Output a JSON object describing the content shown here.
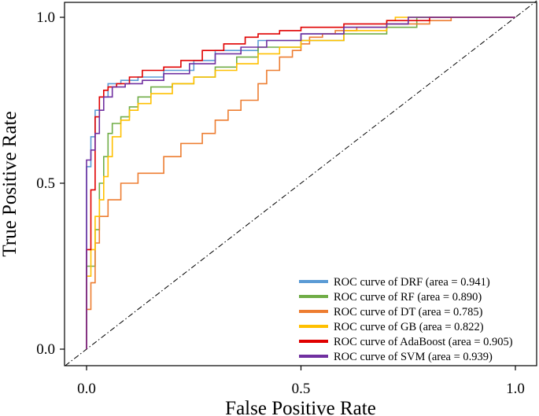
{
  "chart_data": {
    "type": "line",
    "title": "",
    "xlabel": "False Positive Rate",
    "ylabel": "True Positive Rate",
    "xlim": [
      -0.05,
      1.05
    ],
    "ylim": [
      -0.05,
      1.0
    ],
    "xticks": [
      0.0,
      0.5,
      1.0
    ],
    "xtick_labels": [
      "0.0",
      "0.5",
      "1.0"
    ],
    "yticks": [
      0.0,
      0.5,
      1.0
    ],
    "ytick_labels": [
      "0.0",
      "0.5",
      "1.0"
    ],
    "grid": false,
    "legend_position": "bottom-right",
    "reference_line": {
      "name": "chance",
      "x": [
        -0.05,
        1.05
      ],
      "y": [
        -0.05,
        1.05
      ],
      "style": "dash-dot",
      "color": "#000000"
    },
    "series": [
      {
        "name": "DRF",
        "label": "ROC curve of DRF (area = 0.941)",
        "color": "#5b9bd5",
        "x": [
          0.0,
          0.0,
          0.01,
          0.01,
          0.02,
          0.02,
          0.03,
          0.03,
          0.05,
          0.05,
          0.08,
          0.12,
          0.18,
          0.25,
          0.3,
          0.4,
          0.5,
          0.6,
          0.7,
          0.75,
          1.0
        ],
        "y": [
          0.0,
          0.55,
          0.6,
          0.64,
          0.66,
          0.72,
          0.74,
          0.76,
          0.79,
          0.8,
          0.81,
          0.82,
          0.84,
          0.87,
          0.9,
          0.93,
          0.95,
          0.97,
          0.98,
          1.0,
          1.0
        ]
      },
      {
        "name": "RF",
        "label": "ROC curve of RF (area = 0.890)",
        "color": "#70ad47",
        "x": [
          0.0,
          0.0,
          0.02,
          0.03,
          0.04,
          0.05,
          0.06,
          0.08,
          0.1,
          0.12,
          0.15,
          0.2,
          0.25,
          0.3,
          0.35,
          0.4,
          0.5,
          0.6,
          0.7,
          0.77,
          1.0
        ],
        "y": [
          0.0,
          0.25,
          0.36,
          0.5,
          0.58,
          0.65,
          0.68,
          0.7,
          0.73,
          0.76,
          0.79,
          0.8,
          0.82,
          0.85,
          0.88,
          0.91,
          0.93,
          0.95,
          0.97,
          1.0,
          1.0
        ]
      },
      {
        "name": "DT",
        "label": "ROC curve of DT (area = 0.785)",
        "color": "#ed7d31",
        "x": [
          0.0,
          0.0,
          0.01,
          0.02,
          0.03,
          0.05,
          0.08,
          0.12,
          0.18,
          0.22,
          0.27,
          0.3,
          0.33,
          0.36,
          0.4,
          0.42,
          0.45,
          0.48,
          0.5,
          0.52,
          0.55,
          0.58,
          0.63,
          0.7,
          0.8,
          0.85,
          1.0
        ],
        "y": [
          0.0,
          0.12,
          0.2,
          0.32,
          0.4,
          0.45,
          0.5,
          0.53,
          0.58,
          0.62,
          0.65,
          0.69,
          0.72,
          0.75,
          0.8,
          0.84,
          0.88,
          0.9,
          0.92,
          0.94,
          0.95,
          0.96,
          0.97,
          0.98,
          0.99,
          1.0,
          1.0
        ]
      },
      {
        "name": "GB",
        "label": "ROC curve of GB (area = 0.822)",
        "color": "#ffc000",
        "x": [
          0.0,
          0.0,
          0.01,
          0.02,
          0.03,
          0.04,
          0.05,
          0.06,
          0.08,
          0.1,
          0.12,
          0.15,
          0.2,
          0.25,
          0.3,
          0.35,
          0.4,
          0.45,
          0.5,
          0.6,
          0.7,
          0.72,
          1.0
        ],
        "y": [
          0.0,
          0.22,
          0.3,
          0.4,
          0.45,
          0.52,
          0.58,
          0.64,
          0.69,
          0.72,
          0.74,
          0.77,
          0.8,
          0.82,
          0.84,
          0.86,
          0.89,
          0.91,
          0.93,
          0.96,
          0.99,
          1.0,
          1.0
        ]
      },
      {
        "name": "AdaBoost",
        "label": "ROC curve of AdaBoost (area = 0.905)",
        "color": "#e00000",
        "x": [
          0.0,
          0.0,
          0.01,
          0.02,
          0.02,
          0.03,
          0.04,
          0.05,
          0.07,
          0.1,
          0.13,
          0.18,
          0.22,
          0.27,
          0.32,
          0.37,
          0.4,
          0.45,
          0.5,
          0.6,
          0.7,
          0.8,
          1.0
        ],
        "y": [
          0.0,
          0.3,
          0.48,
          0.58,
          0.7,
          0.76,
          0.78,
          0.79,
          0.8,
          0.82,
          0.84,
          0.85,
          0.87,
          0.9,
          0.92,
          0.94,
          0.95,
          0.96,
          0.97,
          0.98,
          0.99,
          1.0,
          1.0
        ]
      },
      {
        "name": "SVM",
        "label": "ROC curve of SVM (area = 0.939)",
        "color": "#7030a0",
        "x": [
          0.0,
          0.0,
          0.01,
          0.02,
          0.03,
          0.04,
          0.06,
          0.09,
          0.13,
          0.18,
          0.24,
          0.3,
          0.36,
          0.42,
          0.5,
          0.6,
          0.7,
          0.75,
          1.0
        ],
        "y": [
          0.0,
          0.57,
          0.6,
          0.65,
          0.72,
          0.76,
          0.79,
          0.8,
          0.81,
          0.83,
          0.86,
          0.89,
          0.91,
          0.93,
          0.95,
          0.97,
          0.98,
          1.0,
          1.0
        ]
      }
    ]
  }
}
